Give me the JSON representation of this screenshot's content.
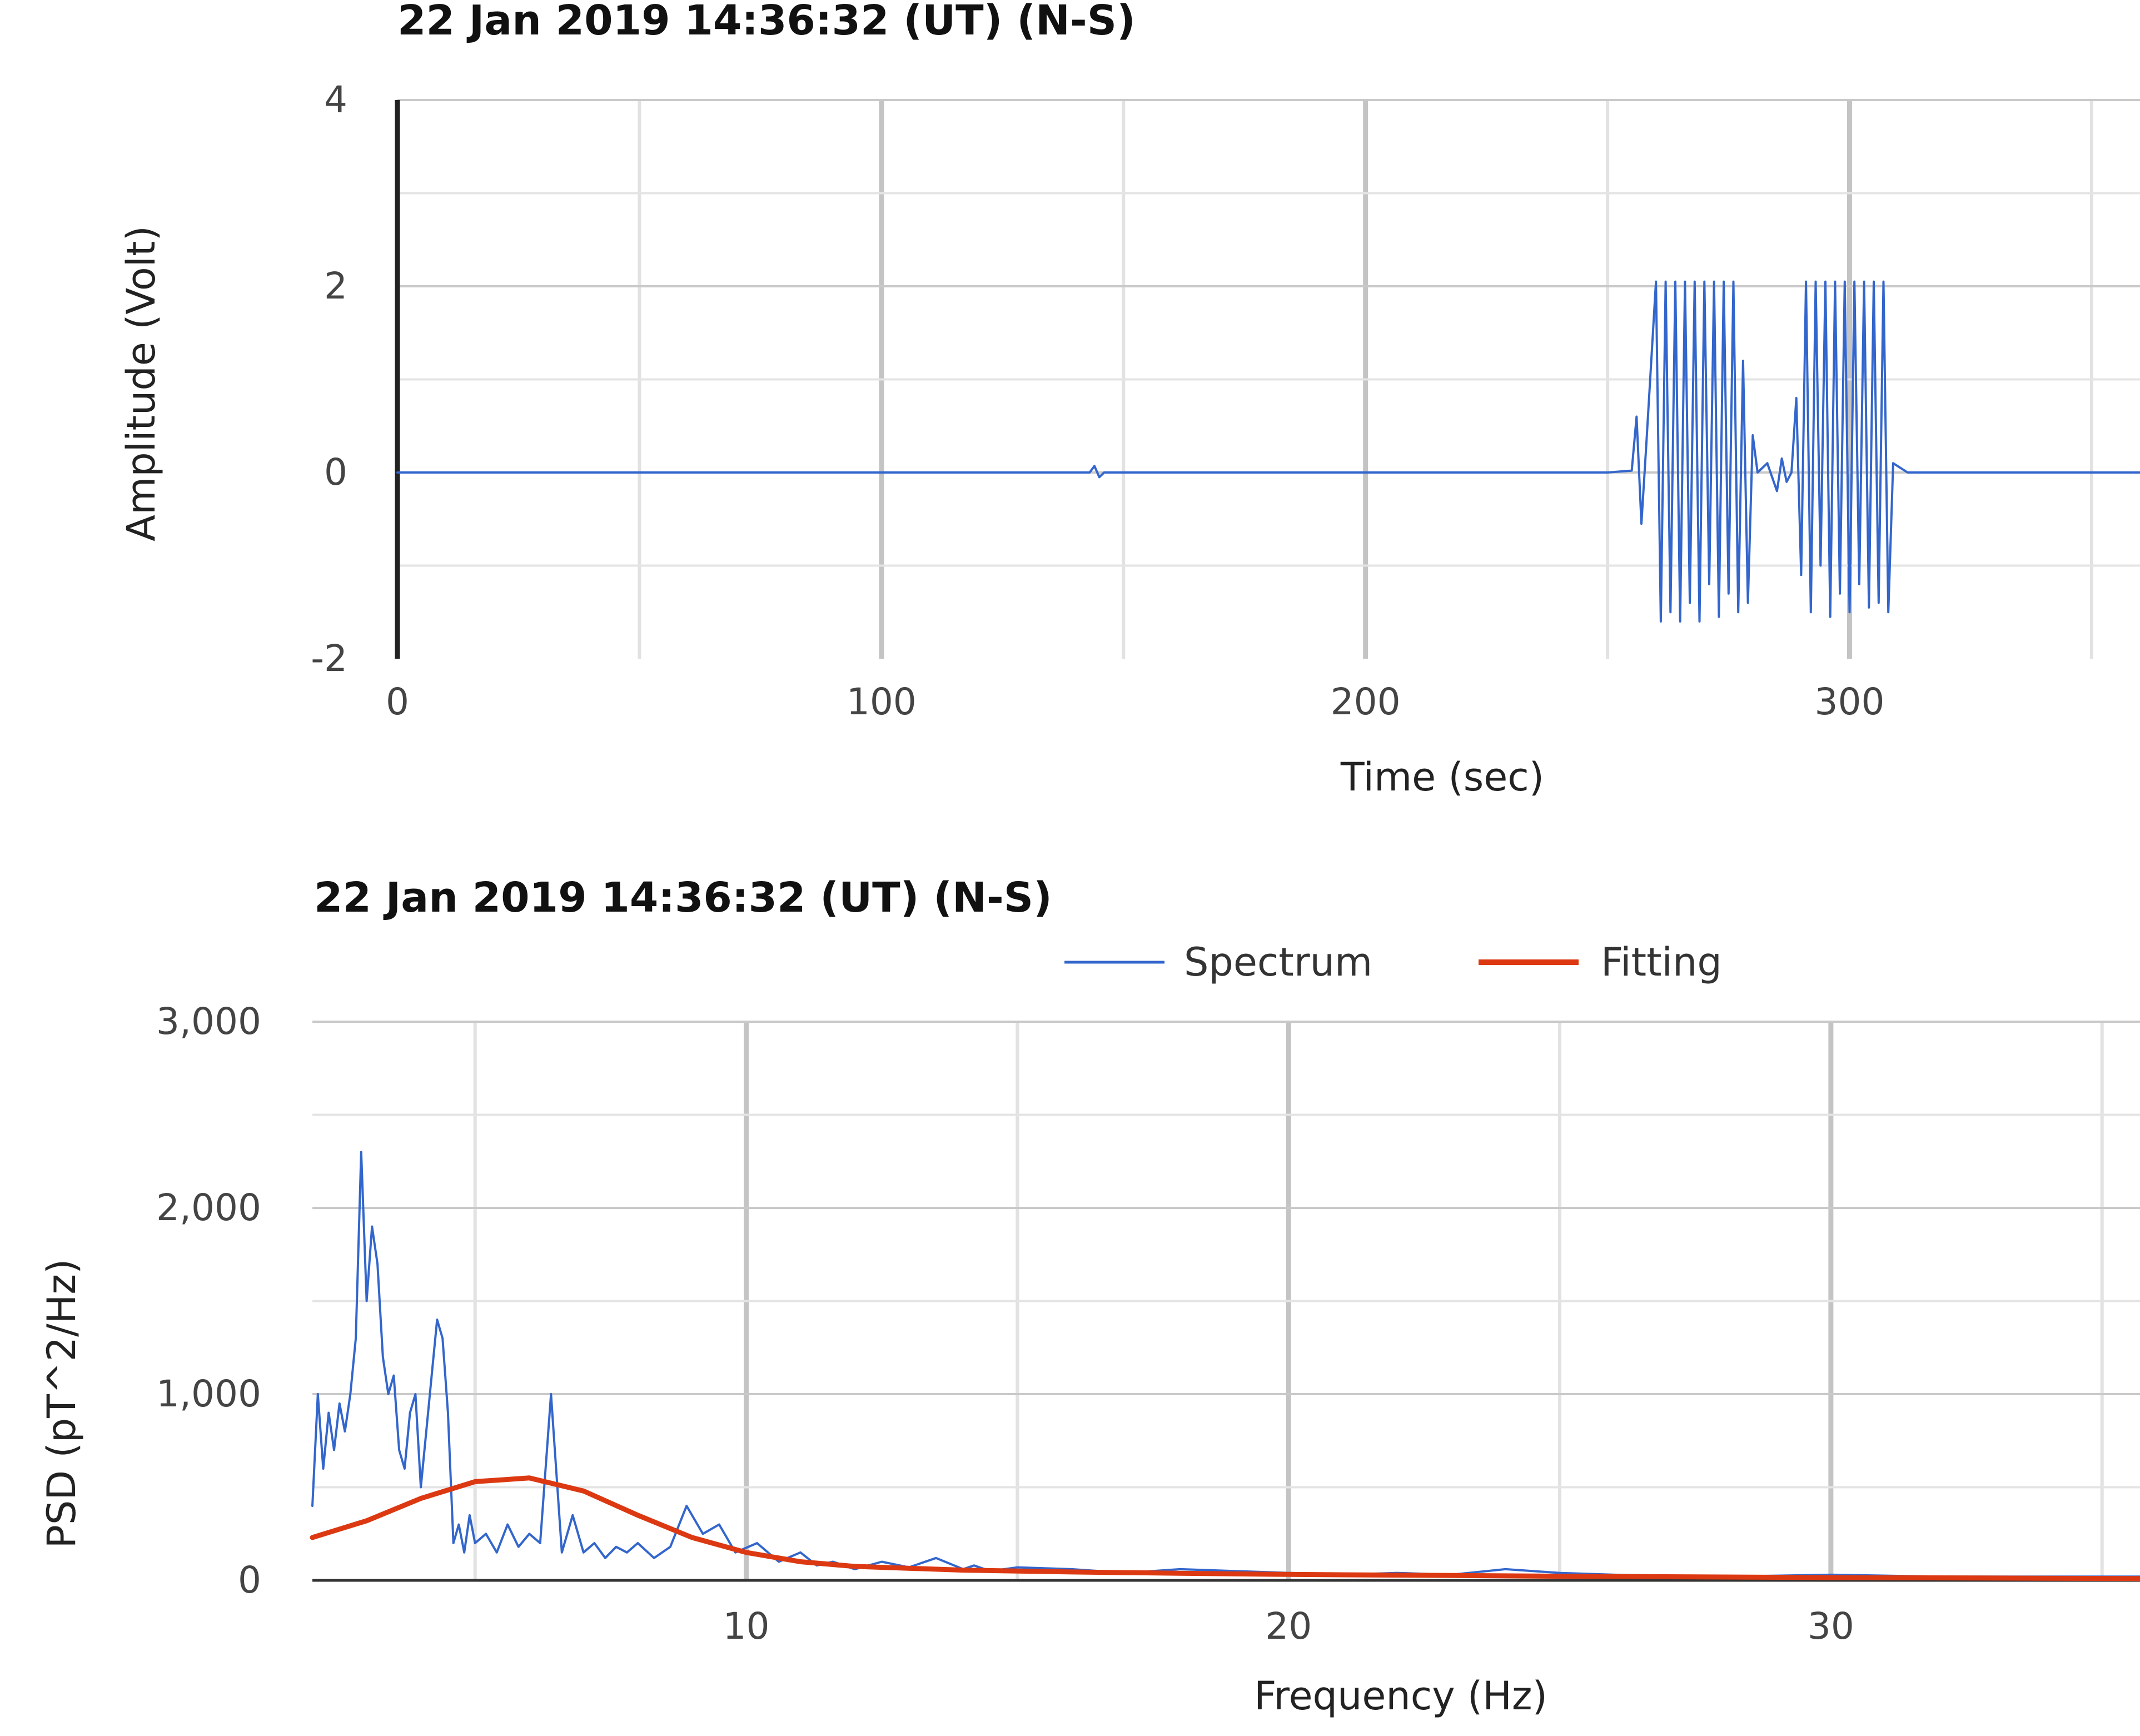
{
  "chart_data": [
    {
      "type": "line",
      "title": "22 Jan 2019  14:36:32 (UT) (N-S)",
      "xlabel": "Time (sec)",
      "ylabel": "Amplitude (Volt)",
      "xlim": [
        0,
        360
      ],
      "ylim": [
        -2,
        4
      ],
      "x_ticks": [
        0,
        100,
        200,
        300
      ],
      "x_tick_labels": [
        "0",
        "100",
        "200",
        "300"
      ],
      "x_grid": [
        0,
        50,
        100,
        150,
        200,
        250,
        300,
        350
      ],
      "y_ticks": [
        -2,
        0,
        2,
        4
      ],
      "y_tick_labels": [
        "-2",
        "0",
        "2",
        "4"
      ],
      "y_grid": [
        -1,
        0,
        1,
        2,
        3,
        4
      ],
      "grid": true,
      "series": [
        {
          "color": "#3366cc",
          "x": [
            0,
            143,
            144,
            145,
            146,
            250,
            255,
            256,
            257,
            258,
            260,
            261,
            262,
            263,
            264,
            265,
            266,
            267,
            268,
            269,
            270,
            271,
            272,
            273,
            274,
            275,
            276,
            277,
            278,
            279,
            280,
            281,
            283,
            285,
            286,
            287,
            288,
            289,
            290,
            291,
            292,
            293,
            294,
            295,
            296,
            297,
            298,
            299,
            300,
            301,
            302,
            303,
            304,
            305,
            306,
            307,
            308,
            309,
            312,
            330,
            360
          ],
          "y": [
            0,
            0,
            0.07,
            -0.05,
            0,
            0,
            0.02,
            0.6,
            -0.55,
            0.3,
            2.05,
            -1.6,
            2.05,
            -1.5,
            2.05,
            -1.6,
            2.05,
            -1.4,
            2.05,
            -1.6,
            2.05,
            -1.2,
            2.05,
            -1.55,
            2.05,
            -1.3,
            2.05,
            -1.5,
            1.2,
            -1.4,
            0.4,
            0,
            0.1,
            -0.2,
            0.15,
            -0.1,
            0,
            0.8,
            -1.1,
            2.05,
            -1.5,
            2.05,
            -1.0,
            2.05,
            -1.55,
            2.05,
            -1.3,
            2.05,
            -1.5,
            2.05,
            -1.2,
            2.05,
            -1.45,
            2.05,
            -1.4,
            2.05,
            -1.5,
            0.1,
            0,
            0,
            0
          ]
        }
      ]
    },
    {
      "type": "line",
      "title": "22 Jan 2019  14:36:32 (UT) (N-S)",
      "xlabel": "Frequency (Hz)",
      "ylabel": "PSD (pT^2/Hz)",
      "xlim": [
        2,
        35.7
      ],
      "ylim": [
        0,
        3000
      ],
      "x_ticks": [
        10,
        20,
        30
      ],
      "x_tick_labels": [
        "10",
        "20",
        "30"
      ],
      "x_grid": [
        5,
        10,
        15,
        20,
        25,
        30,
        35
      ],
      "y_ticks": [
        0,
        1000,
        2000,
        3000
      ],
      "y_tick_labels": [
        "0",
        "1,000",
        "2,000",
        "3,000"
      ],
      "y_grid": [
        0,
        500,
        1000,
        1500,
        2000,
        2500,
        3000
      ],
      "grid": true,
      "legend_position": "top-right",
      "series": [
        {
          "name": "Spectrum",
          "color": "#3366cc",
          "x": [
            2.0,
            2.1,
            2.2,
            2.3,
            2.4,
            2.5,
            2.6,
            2.7,
            2.8,
            2.9,
            3.0,
            3.1,
            3.2,
            3.3,
            3.4,
            3.5,
            3.6,
            3.7,
            3.8,
            3.9,
            4.0,
            4.1,
            4.2,
            4.3,
            4.4,
            4.5,
            4.6,
            4.7,
            4.8,
            4.9,
            5.0,
            5.2,
            5.4,
            5.6,
            5.8,
            6.0,
            6.2,
            6.4,
            6.6,
            6.8,
            7.0,
            7.2,
            7.4,
            7.6,
            7.8,
            8.0,
            8.3,
            8.6,
            8.9,
            9.2,
            9.5,
            9.8,
            10.2,
            10.6,
            11.0,
            11.3,
            11.6,
            12.0,
            12.5,
            13.0,
            13.5,
            14.0,
            14.2,
            14.5,
            15.0,
            16.0,
            17.0,
            18.0,
            19.0,
            20.0,
            21.0,
            22.0,
            23.0,
            24.0,
            25.0,
            26.0,
            28.0,
            30.0,
            32.0,
            34.0,
            35.7
          ],
          "y": [
            400,
            1000,
            600,
            900,
            700,
            950,
            800,
            1000,
            1300,
            2300,
            1500,
            1900,
            1700,
            1200,
            1000,
            1100,
            700,
            600,
            900,
            1000,
            500,
            800,
            1100,
            1400,
            1300,
            900,
            200,
            300,
            150,
            350,
            200,
            250,
            150,
            300,
            180,
            250,
            200,
            1000,
            150,
            350,
            150,
            200,
            120,
            180,
            150,
            200,
            120,
            180,
            400,
            250,
            300,
            150,
            200,
            100,
            150,
            80,
            100,
            60,
            100,
            70,
            120,
            60,
            80,
            50,
            70,
            60,
            40,
            60,
            50,
            40,
            30,
            40,
            30,
            60,
            40,
            30,
            20,
            30,
            20,
            20,
            20
          ]
        },
        {
          "name": "Fitting",
          "color": "#dc3912",
          "x": [
            2,
            3,
            4,
            5,
            6,
            7,
            8,
            9,
            10,
            11,
            12,
            14,
            16,
            18,
            20,
            25,
            30,
            35.7
          ],
          "y": [
            230,
            320,
            440,
            530,
            550,
            480,
            350,
            230,
            150,
            100,
            75,
            55,
            45,
            38,
            32,
            22,
            15,
            10
          ]
        }
      ]
    }
  ]
}
